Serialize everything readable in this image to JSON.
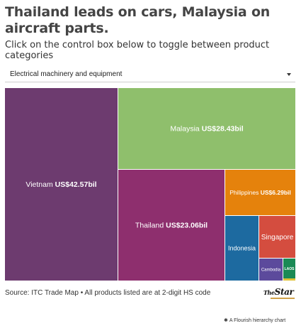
{
  "header": {
    "title": "Thailand leads on cars, Malaysia on aircraft parts.",
    "subtitle": "Click on the control box below to toggle between product categories"
  },
  "control": {
    "selected": "Electrical machinery and equipment",
    "icon": "chevron-down-icon"
  },
  "chart_data": {
    "type": "treemap",
    "unit": "US$ bil",
    "items": [
      {
        "name": "Vietnam",
        "label": "Vietnam",
        "value_label": "US$42.57bil",
        "value": 42.57,
        "color": "#6d3b6f"
      },
      {
        "name": "Malaysia",
        "label": "Malaysia",
        "value_label": "US$28.43bil",
        "value": 28.43,
        "color": "#8fbf6c"
      },
      {
        "name": "Thailand",
        "label": "Thailand",
        "value_label": "US$23.06bil",
        "value": 23.06,
        "color": "#8e2f6e"
      },
      {
        "name": "Philippines",
        "label": "Philippines",
        "value_label": "US$6.29bil",
        "value": 6.29,
        "color": "#e5820c"
      },
      {
        "name": "Indonesia",
        "label": "Indonesia",
        "value_label": "",
        "value": 4.2,
        "color": "#1d6aa0"
      },
      {
        "name": "Singapore",
        "label": "Singapore",
        "value_label": "",
        "value": 3.6,
        "color": "#d44d3f"
      },
      {
        "name": "Cambodia",
        "label": "Cambodia",
        "value_label": "",
        "value": 1.55,
        "color": "#5c4a9c"
      },
      {
        "name": "Laos",
        "label": "LAOS",
        "value_label": "",
        "value": 0.8,
        "color": "#1a8a55"
      },
      {
        "name": "Myanmar",
        "label": "",
        "value_label": "",
        "value": 0.15,
        "color": "#e0c238"
      }
    ]
  },
  "footer": {
    "source": "Source: ITC Trade Map • All products listed are at 2-digit HS code",
    "logo_small": "The",
    "logo_main": "Star",
    "credit": "A Flourish hierarchy chart",
    "credit_icon": "flourish-icon"
  }
}
